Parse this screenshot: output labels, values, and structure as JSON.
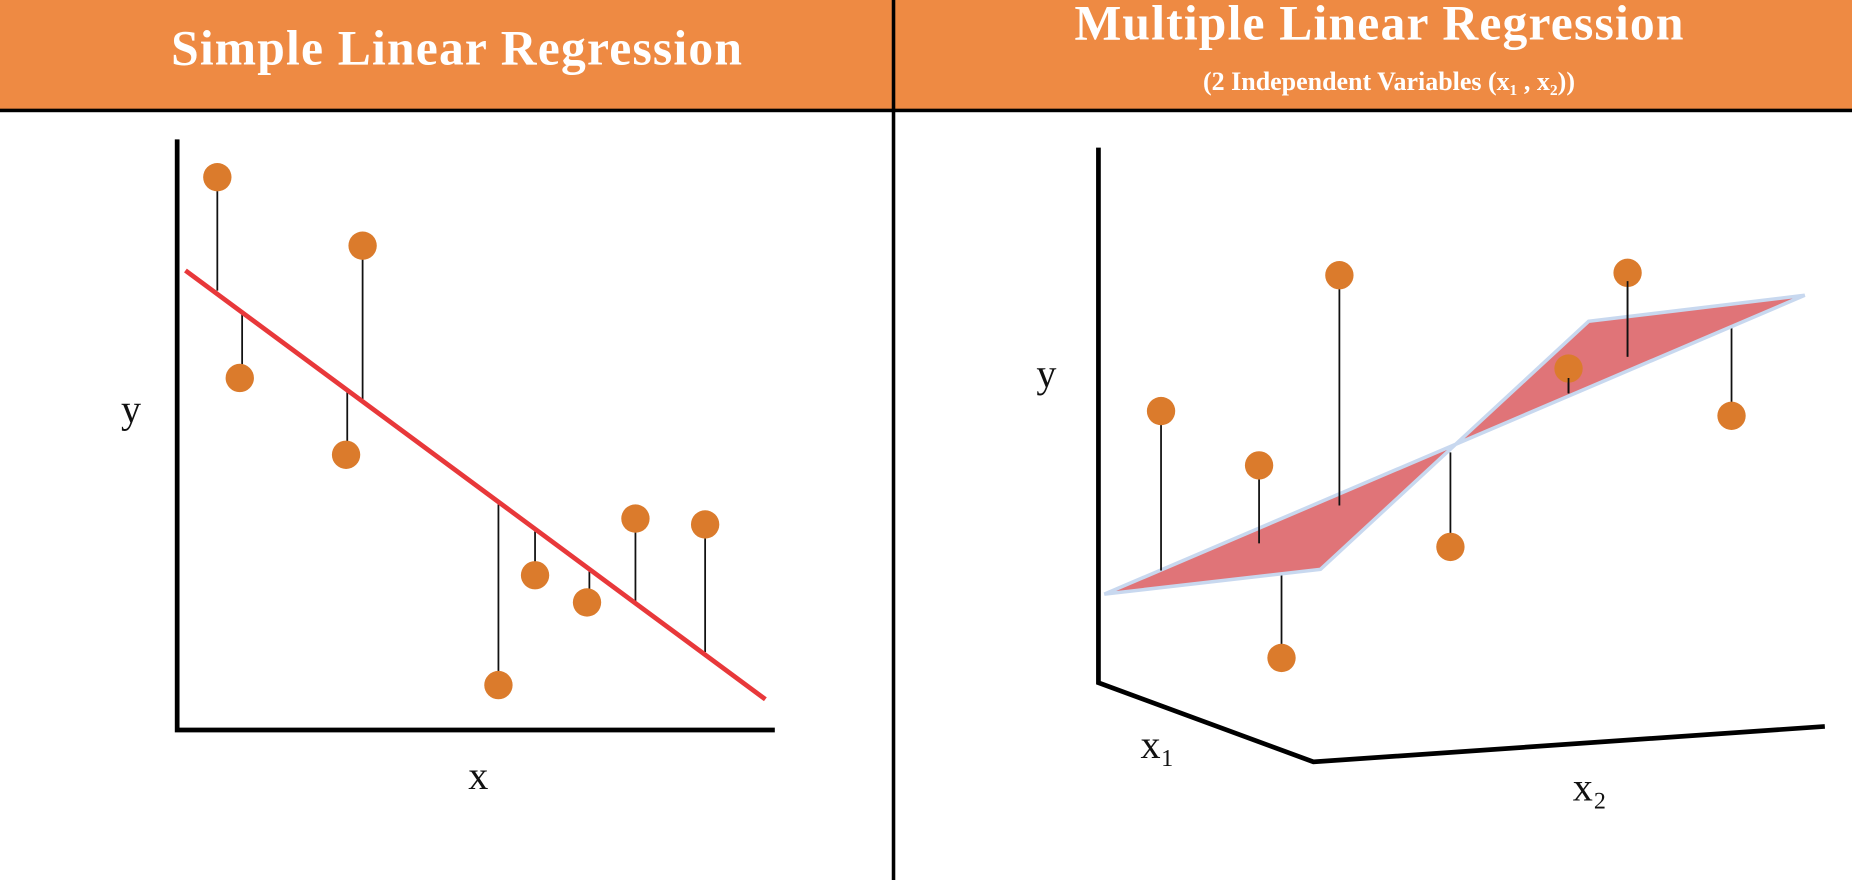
{
  "left_panel": {
    "title": "Simple Linear Regression",
    "y_label": "y",
    "x_label": "x"
  },
  "right_panel": {
    "title": "Multiple Linear Regression",
    "subtitle": "(2 Independent Variables (x₁ , x₂))",
    "y_label": "y",
    "x1_label": "x₁",
    "x2_label": "x₂"
  }
}
